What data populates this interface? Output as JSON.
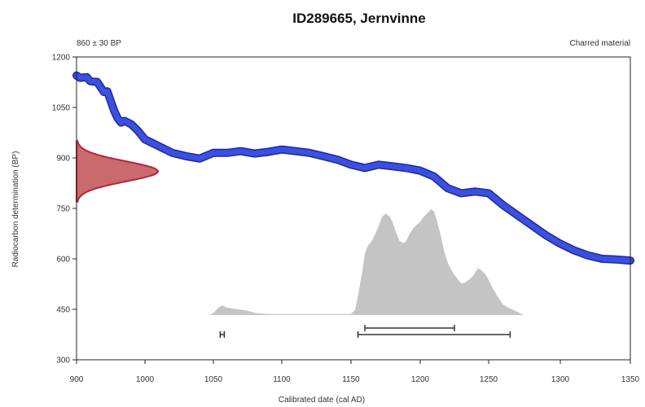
{
  "chart_data": {
    "type": "area",
    "title": "ID289665, Jernvinne",
    "subtitle_left": "860 ± 30 BP",
    "subtitle_right": "Charred material",
    "xlabel": "Calibrated date (cal AD)",
    "ylabel": "Radiocarbon determination (BP)",
    "xlim": [
      900,
      1350
    ],
    "ylim": [
      300,
      1200
    ],
    "x_ticks": [
      "900",
      "1000",
      "1050",
      "1100",
      "1150",
      "1200",
      "1250",
      "1300",
      "1350"
    ],
    "y_ticks": [
      "300",
      "450",
      "600",
      "750",
      "900",
      "1050",
      "1200"
    ],
    "calibration_curve": {
      "x": [
        900,
        905,
        915,
        920,
        930,
        940,
        945,
        955,
        960,
        965,
        970,
        980,
        990,
        1000,
        1010,
        1020,
        1030,
        1040,
        1050,
        1060,
        1070,
        1080,
        1090,
        1100,
        1110,
        1120,
        1130,
        1140,
        1150,
        1160,
        1170,
        1180,
        1190,
        1200,
        1210,
        1220,
        1230,
        1240,
        1250,
        1260,
        1270,
        1280,
        1290,
        1300,
        1310,
        1320,
        1330,
        1340,
        1350
      ],
      "y": [
        1145,
        1138,
        1140,
        1128,
        1126,
        1096,
        1098,
        1040,
        1018,
        1005,
        1010,
        1000,
        980,
        955,
        935,
        915,
        905,
        898,
        915,
        915,
        920,
        913,
        918,
        925,
        920,
        915,
        905,
        895,
        880,
        870,
        880,
        875,
        870,
        862,
        845,
        810,
        795,
        800,
        795,
        760,
        730,
        700,
        670,
        645,
        625,
        610,
        600,
        598,
        595
      ]
    },
    "measurement_distribution": {
      "bp_center": 860,
      "bp_error": 30
    },
    "calibrated_probability": {
      "x": [
        1048,
        1050,
        1053,
        1056,
        1058,
        1060,
        1065,
        1070,
        1075,
        1080,
        1090,
        1100,
        1110,
        1120,
        1130,
        1140,
        1150,
        1153,
        1155,
        1158,
        1160,
        1162,
        1165,
        1168,
        1170,
        1172,
        1175,
        1178,
        1180,
        1182,
        1185,
        1188,
        1190,
        1192,
        1195,
        1198,
        1200,
        1202,
        1205,
        1208,
        1210,
        1212,
        1215,
        1218,
        1220,
        1222,
        1225,
        1228,
        1230,
        1232,
        1235,
        1238,
        1240,
        1242,
        1245,
        1248,
        1250,
        1253,
        1256,
        1260,
        1265,
        1270,
        1273,
        1275
      ],
      "y": [
        0.0,
        0.02,
        0.06,
        0.09,
        0.08,
        0.07,
        0.06,
        0.05,
        0.04,
        0.02,
        0.01,
        0.01,
        0.01,
        0.01,
        0.01,
        0.01,
        0.01,
        0.05,
        0.18,
        0.4,
        0.58,
        0.65,
        0.7,
        0.78,
        0.84,
        0.92,
        0.96,
        0.93,
        0.88,
        0.8,
        0.7,
        0.68,
        0.7,
        0.76,
        0.82,
        0.86,
        0.88,
        0.92,
        0.96,
        1.0,
        0.98,
        0.9,
        0.75,
        0.58,
        0.5,
        0.44,
        0.38,
        0.33,
        0.3,
        0.3,
        0.33,
        0.36,
        0.4,
        0.44,
        0.42,
        0.38,
        0.33,
        0.25,
        0.18,
        0.1,
        0.06,
        0.03,
        0.01,
        0.0
      ]
    },
    "ranges_68": [
      {
        "from": 1160,
        "to": 1225
      }
    ],
    "ranges_95": [
      {
        "from": 1055,
        "to": 1058
      },
      {
        "from": 1155,
        "to": 1265
      }
    ],
    "colors": {
      "curve": "#3b4fe0",
      "curve_outline": "#1e2a9a",
      "measurement_fill": "#c96a6e",
      "measurement_edge": "#b8233a",
      "probability_fill": "#c4c4c4",
      "range_bar": "#333333"
    },
    "grid": false
  }
}
